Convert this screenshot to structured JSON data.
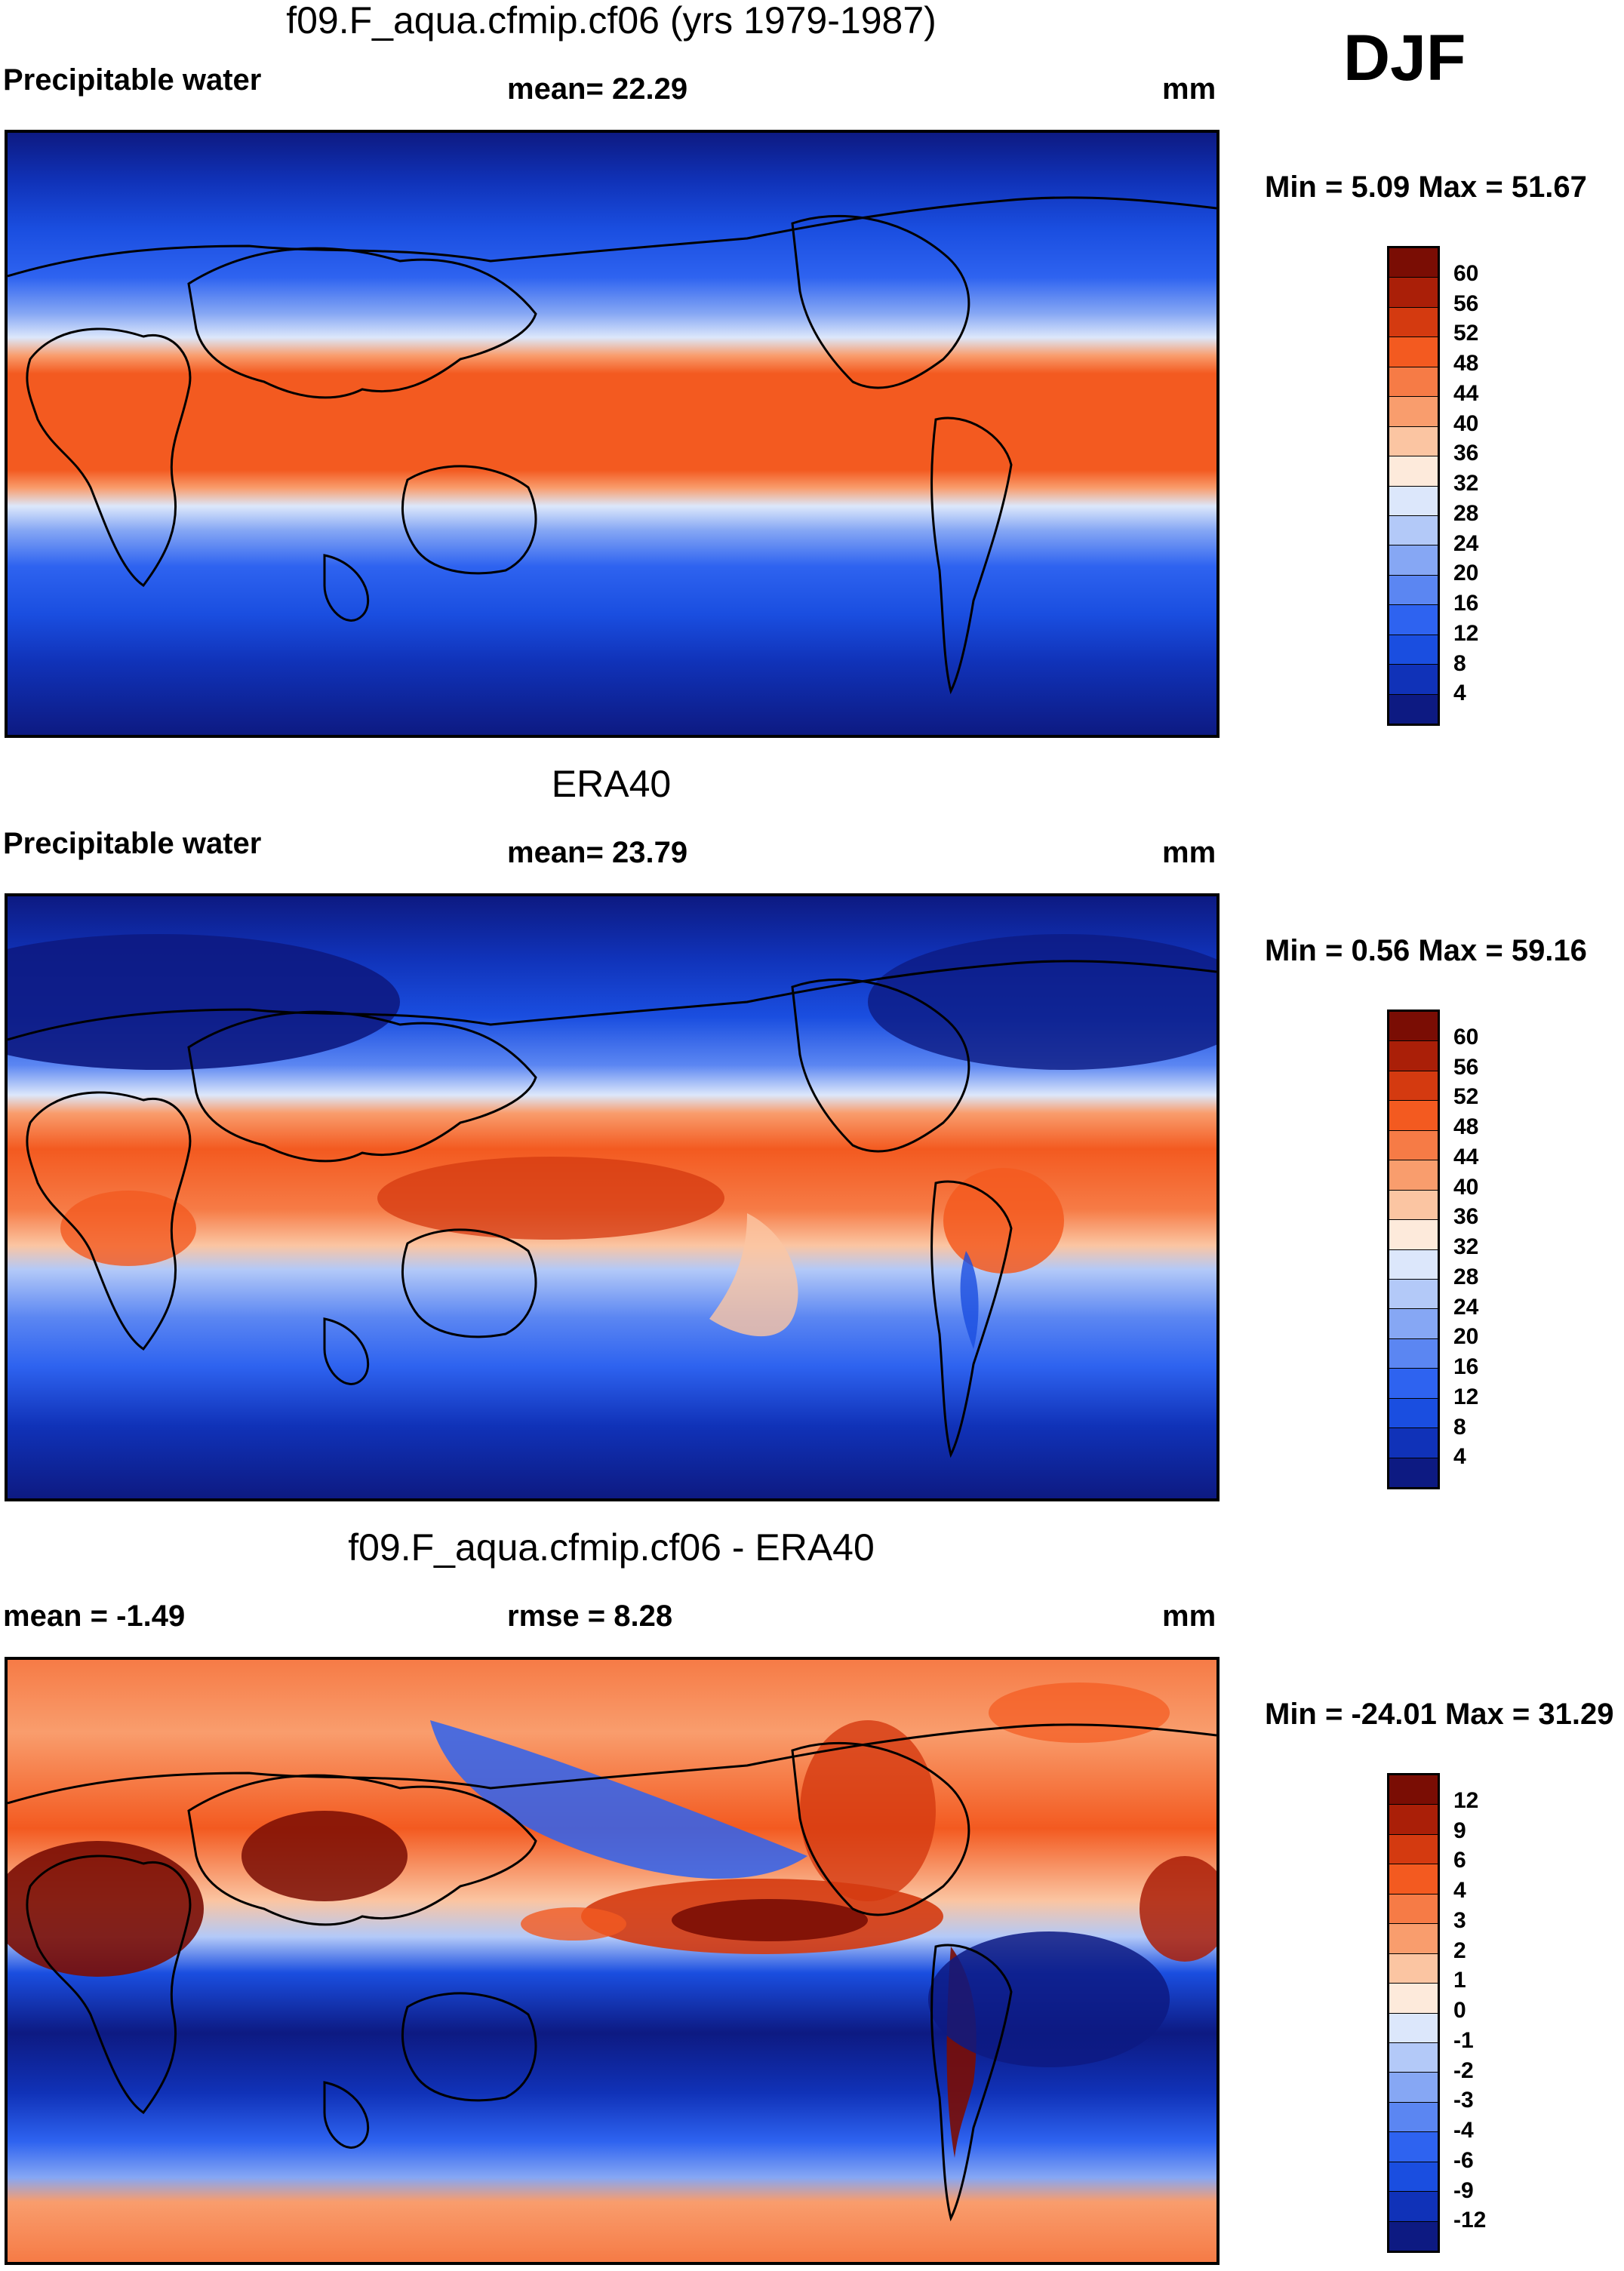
{
  "season": "DJF",
  "colors": {
    "precip_scale": [
      "#0d1a82",
      "#1032b8",
      "#1a4ee0",
      "#2e63f0",
      "#5b86f2",
      "#86a7f4",
      "#b3c9f8",
      "#dce7fb",
      "#fdeadb",
      "#fbc5a2",
      "#f99d6d",
      "#f67b46",
      "#f35a20",
      "#d43a10",
      "#aa1f08",
      "#7a0d04"
    ],
    "diff_scale": [
      "#0d1a82",
      "#1032b8",
      "#1a4ee0",
      "#2e63f0",
      "#5b86f2",
      "#86a7f4",
      "#b3c9f8",
      "#dce7fb",
      "#fdeadb",
      "#fbc5a2",
      "#f99d6d",
      "#f67b46",
      "#f35a20",
      "#d43a10",
      "#aa1f08",
      "#7a0d04"
    ]
  },
  "panels": [
    {
      "title": "f09.F_aqua.cfmip.cf06 (yrs 1979-1987)",
      "left_label": "Precipitable water",
      "center_label": "mean=  22.29",
      "units": "mm",
      "minmax": "Min =   5.09 Max =  51.67",
      "scale_labels": [
        "60",
        "56",
        "52",
        "48",
        "44",
        "40",
        "36",
        "32",
        "28",
        "24",
        "20",
        "16",
        "12",
        "8",
        "4"
      ]
    },
    {
      "title": "ERA40",
      "left_label": "Precipitable water",
      "center_label": "mean=  23.79",
      "units": "mm",
      "minmax": "Min =   0.56 Max =  59.16",
      "scale_labels": [
        "60",
        "56",
        "52",
        "48",
        "44",
        "40",
        "36",
        "32",
        "28",
        "24",
        "20",
        "16",
        "12",
        "8",
        "4"
      ]
    },
    {
      "title": "f09.F_aqua.cfmip.cf06 - ERA40",
      "left_label": "mean =  -1.49",
      "center_label": "rmse =   8.28",
      "units": "mm",
      "minmax": "Min = -24.01 Max =  31.29",
      "scale_labels": [
        "12",
        "9",
        "6",
        "4",
        "3",
        "2",
        "1",
        "0",
        "-1",
        "-2",
        "-3",
        "-4",
        "-6",
        "-9",
        "-12"
      ]
    }
  ]
}
